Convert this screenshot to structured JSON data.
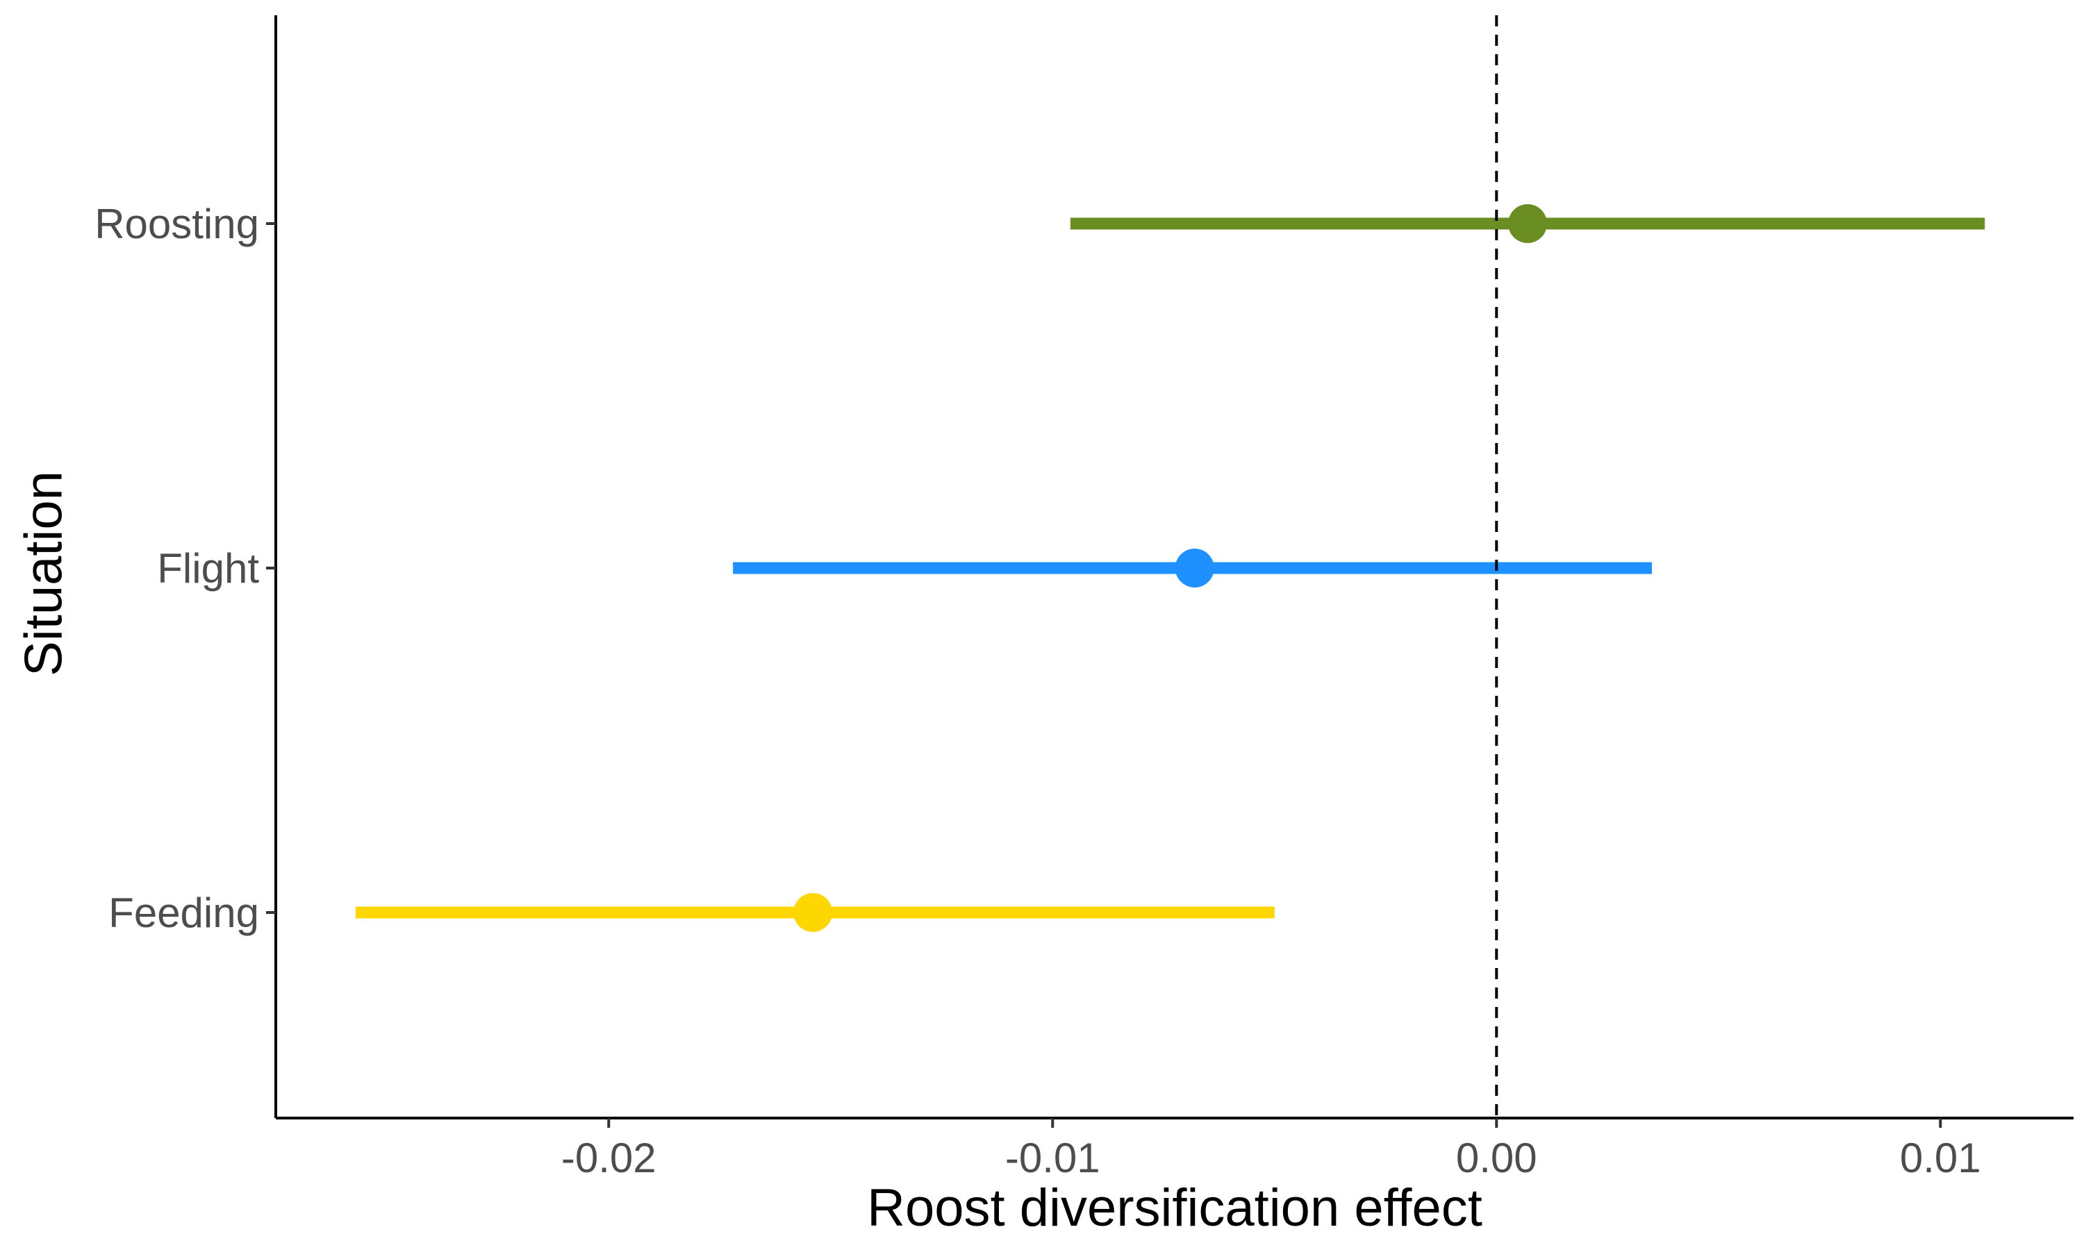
{
  "chart_data": {
    "type": "forest",
    "title": "",
    "xlabel": "Roost diversification effect",
    "ylabel": "Situation",
    "xlim": [
      -0.0275,
      0.013
    ],
    "x_ticks": [
      {
        "value": -0.02,
        "label": "-0.02"
      },
      {
        "value": -0.01,
        "label": "-0.01"
      },
      {
        "value": 0.0,
        "label": "0.00"
      },
      {
        "value": 0.01,
        "label": "0.01"
      }
    ],
    "reference_line": {
      "x": 0.0,
      "style": "dashed"
    },
    "categories": [
      "Roosting",
      "Flight",
      "Feeding"
    ],
    "series": [
      {
        "category": "Roosting",
        "estimate": 0.0007,
        "lower": -0.0096,
        "upper": 0.011,
        "color": "#6b8e23"
      },
      {
        "category": "Flight",
        "estimate": -0.0068,
        "lower": -0.0172,
        "upper": 0.0035,
        "color": "#1e90ff"
      },
      {
        "category": "Feeding",
        "estimate": -0.0154,
        "lower": -0.0257,
        "upper": -0.005,
        "color": "#ffd700"
      }
    ],
    "grid": false,
    "legend": "none"
  }
}
